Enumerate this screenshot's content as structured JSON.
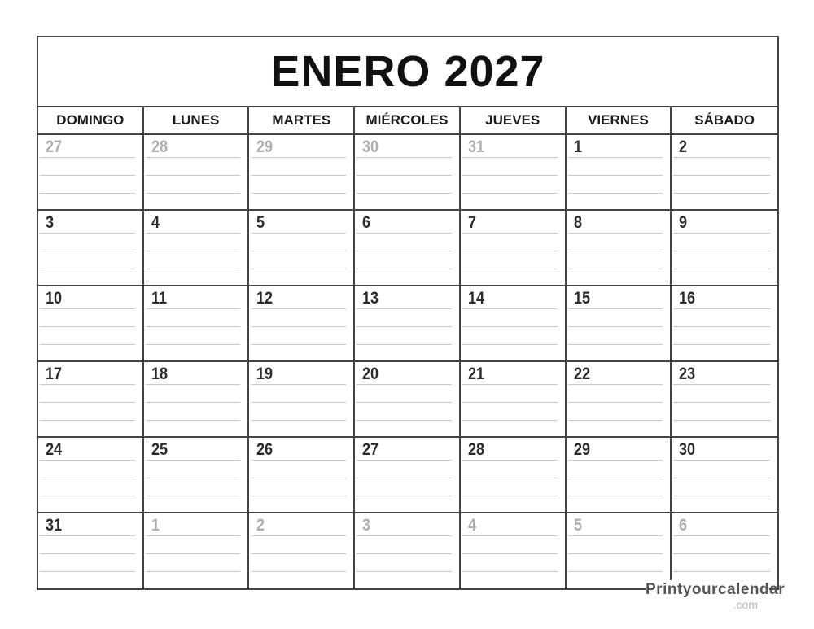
{
  "title": "ENERO 2027",
  "weekday_headers": [
    "DOMINGO",
    "LUNES",
    "MARTES",
    "MIÉRCOLES",
    "JUEVES",
    "VIERNES",
    "SÁBADO"
  ],
  "weeks": [
    [
      {
        "day": "27",
        "muted": true
      },
      {
        "day": "28",
        "muted": true
      },
      {
        "day": "29",
        "muted": true
      },
      {
        "day": "30",
        "muted": true
      },
      {
        "day": "31",
        "muted": true
      },
      {
        "day": "1",
        "muted": false
      },
      {
        "day": "2",
        "muted": false
      }
    ],
    [
      {
        "day": "3",
        "muted": false
      },
      {
        "day": "4",
        "muted": false
      },
      {
        "day": "5",
        "muted": false
      },
      {
        "day": "6",
        "muted": false
      },
      {
        "day": "7",
        "muted": false
      },
      {
        "day": "8",
        "muted": false
      },
      {
        "day": "9",
        "muted": false
      }
    ],
    [
      {
        "day": "10",
        "muted": false
      },
      {
        "day": "11",
        "muted": false
      },
      {
        "day": "12",
        "muted": false
      },
      {
        "day": "13",
        "muted": false
      },
      {
        "day": "14",
        "muted": false
      },
      {
        "day": "15",
        "muted": false
      },
      {
        "day": "16",
        "muted": false
      }
    ],
    [
      {
        "day": "17",
        "muted": false
      },
      {
        "day": "18",
        "muted": false
      },
      {
        "day": "19",
        "muted": false
      },
      {
        "day": "20",
        "muted": false
      },
      {
        "day": "21",
        "muted": false
      },
      {
        "day": "22",
        "muted": false
      },
      {
        "day": "23",
        "muted": false
      }
    ],
    [
      {
        "day": "24",
        "muted": false
      },
      {
        "day": "25",
        "muted": false
      },
      {
        "day": "26",
        "muted": false
      },
      {
        "day": "27",
        "muted": false
      },
      {
        "day": "28",
        "muted": false
      },
      {
        "day": "29",
        "muted": false
      },
      {
        "day": "30",
        "muted": false
      }
    ],
    [
      {
        "day": "31",
        "muted": false
      },
      {
        "day": "1",
        "muted": true
      },
      {
        "day": "2",
        "muted": true
      },
      {
        "day": "3",
        "muted": true
      },
      {
        "day": "4",
        "muted": true
      },
      {
        "day": "5",
        "muted": true
      },
      {
        "day": "6",
        "muted": true
      }
    ]
  ],
  "branding": {
    "name": "Printyourcalendar",
    "tld": ".com"
  },
  "colors": {
    "grid_border": "#444444",
    "writing_line": "#c8c8c8",
    "current_month_day": "#2b2b2b",
    "adjacent_month_day": "#aeaeae",
    "brand_name": "#555658",
    "brand_tld": "#b8b8b8"
  }
}
